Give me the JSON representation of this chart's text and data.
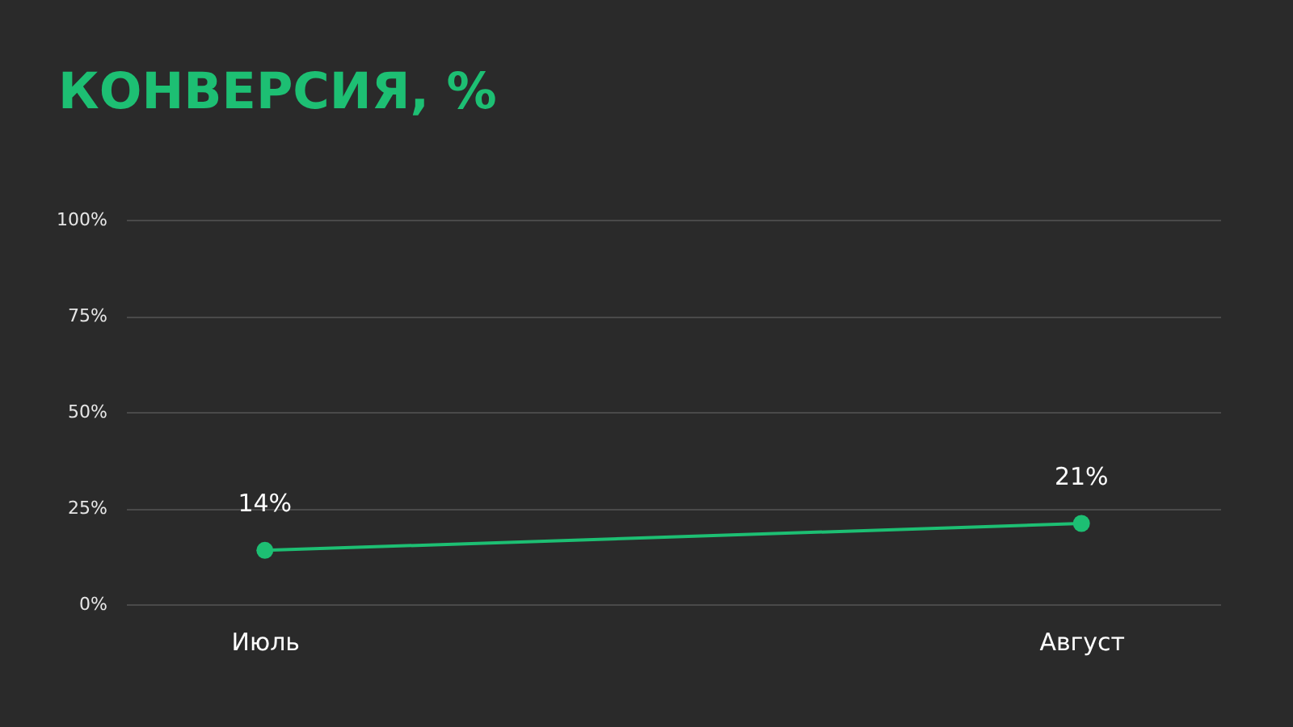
{
  "chart_data": {
    "type": "line",
    "title": "КОНВЕРСИЯ, %",
    "categories": [
      "Июль",
      "Август"
    ],
    "values": [
      14,
      21
    ],
    "value_labels": [
      "14%",
      "21%"
    ],
    "color": "#1dbf73",
    "ylim": [
      0,
      100
    ],
    "yticks": [
      {
        "value": 0,
        "label": "0%"
      },
      {
        "value": 25,
        "label": "25%"
      },
      {
        "value": 50,
        "label": "50%"
      },
      {
        "value": 75,
        "label": "75%"
      },
      {
        "value": 100,
        "label": "100%"
      }
    ],
    "grid": "y",
    "marker": "circle",
    "line_style": "solid"
  }
}
